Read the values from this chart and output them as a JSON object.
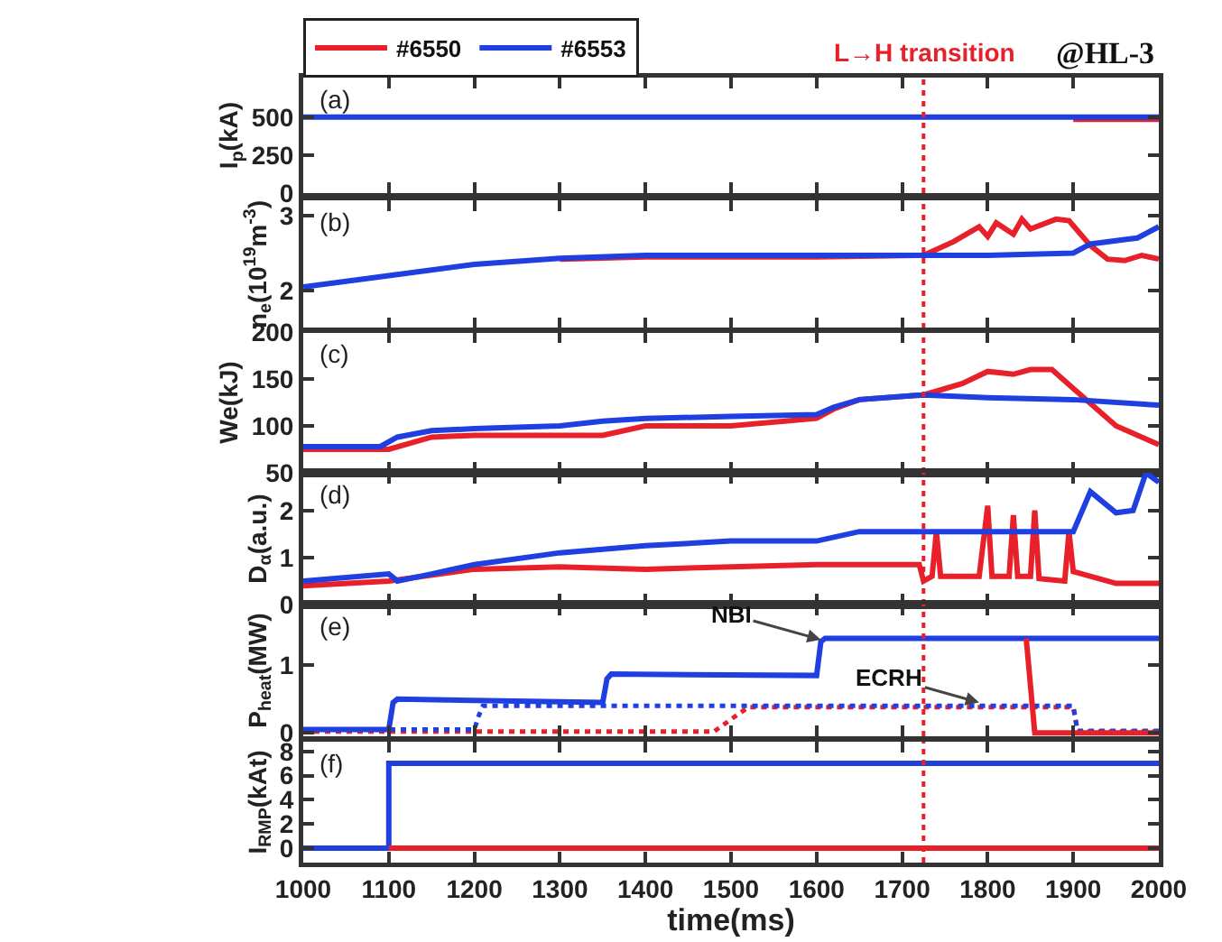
{
  "chart_data": [
    {
      "type": "line",
      "ylabel": "I$_{p}$(kA)",
      "xlim": [
        1000,
        2000
      ],
      "xticks": [
        1000,
        1100,
        1200,
        1300,
        1400,
        1500,
        1600,
        1700,
        1800,
        1900,
        2000
      ],
      "ylim": [
        0,
        760
      ],
      "yticks": [
        0,
        250,
        500
      ],
      "tick_labels": "y",
      "grid": false,
      "legend": "top left",
      "annotations": [
        "(a)",
        "@HL-3"
      ],
      "ref_lines": [
        {
          "axis": "x",
          "value": 1725,
          "label": "L→H transition",
          "color": "#e8202a",
          "line_style": "dotted"
        }
      ],
      "series": [
        {
          "name": "#6550",
          "color": "#e8202a",
          "x": [
            1900,
            1950,
            2000
          ],
          "values": [
            485,
            485,
            485
          ]
        },
        {
          "name": "#6553",
          "color": "#1f3fe0",
          "x": [
            1000,
            1200,
            1400,
            1600,
            1800,
            2000
          ],
          "values": [
            500,
            500,
            500,
            500,
            500,
            500
          ]
        }
      ]
    },
    {
      "type": "line",
      "ylabel": "n$_{e}$(10$^{19}$m$^{-3}$)",
      "xlim": [
        1000,
        2000
      ],
      "xticks": [
        1000,
        1100,
        1200,
        1300,
        1400,
        1500,
        1600,
        1700,
        1800,
        1900,
        2000
      ],
      "ylim": [
        1.5,
        3.2
      ],
      "yticks": [
        2,
        3
      ],
      "tick_labels": "y",
      "grid": false,
      "annotations": [
        "(b)"
      ],
      "ref_lines": [
        {
          "axis": "x",
          "value": 1725,
          "color": "#e8202a",
          "line_style": "dotted"
        }
      ],
      "series": [
        {
          "color": "#e8202a",
          "x": [
            1300,
            1400,
            1500,
            1600,
            1725,
            1760,
            1790,
            1800,
            1810,
            1830,
            1840,
            1850,
            1880,
            1895,
            1920,
            1940,
            1960,
            1980,
            2000
          ],
          "values": [
            2.42,
            2.45,
            2.45,
            2.45,
            2.47,
            2.65,
            2.85,
            2.72,
            2.9,
            2.75,
            2.95,
            2.82,
            2.95,
            2.93,
            2.6,
            2.42,
            2.4,
            2.47,
            2.42
          ]
        },
        {
          "color": "#1f3fe0",
          "x": [
            1000,
            1100,
            1200,
            1300,
            1400,
            1500,
            1600,
            1700,
            1800,
            1900,
            1920,
            1960,
            1975,
            2000
          ],
          "values": [
            2.05,
            2.2,
            2.35,
            2.43,
            2.47,
            2.47,
            2.47,
            2.47,
            2.47,
            2.5,
            2.62,
            2.68,
            2.7,
            2.85
          ]
        }
      ]
    },
    {
      "type": "line",
      "ylabel": "We(kJ)",
      "xlim": [
        1000,
        2000
      ],
      "xticks": [
        1000,
        1100,
        1200,
        1300,
        1400,
        1500,
        1600,
        1700,
        1800,
        1900,
        2000
      ],
      "ylim": [
        50,
        200
      ],
      "yticks": [
        50,
        100,
        150,
        200
      ],
      "tick_labels": "y",
      "grid": false,
      "annotations": [
        "(c)"
      ],
      "ref_lines": [
        {
          "axis": "x",
          "value": 1725,
          "color": "#e8202a",
          "line_style": "dotted"
        }
      ],
      "series": [
        {
          "color": "#e8202a",
          "x": [
            1000,
            1100,
            1150,
            1200,
            1350,
            1400,
            1500,
            1600,
            1620,
            1650,
            1725,
            1770,
            1800,
            1830,
            1850,
            1875,
            1900,
            1950,
            2000
          ],
          "values": [
            75,
            75,
            88,
            90,
            90,
            100,
            100,
            108,
            118,
            128,
            133,
            145,
            158,
            155,
            160,
            160,
            140,
            100,
            80
          ]
        },
        {
          "color": "#1f3fe0",
          "x": [
            1000,
            1090,
            1110,
            1150,
            1200,
            1300,
            1350,
            1400,
            1500,
            1600,
            1620,
            1650,
            1725,
            1800,
            1900,
            2000
          ],
          "values": [
            78,
            78,
            88,
            95,
            97,
            100,
            105,
            108,
            110,
            112,
            120,
            128,
            133,
            130,
            128,
            122
          ]
        }
      ]
    },
    {
      "type": "line",
      "ylabel": "D$_{α}$(a.u.)",
      "xlim": [
        1000,
        2000
      ],
      "xticks": [
        1000,
        1100,
        1200,
        1300,
        1400,
        1500,
        1600,
        1700,
        1800,
        1900,
        2000
      ],
      "ylim": [
        0,
        2.8
      ],
      "yticks": [
        0,
        1,
        2
      ],
      "tick_labels": "y",
      "grid": false,
      "annotations": [
        "(d)"
      ],
      "ref_lines": [
        {
          "axis": "x",
          "value": 1725,
          "color": "#e8202a",
          "line_style": "dotted"
        }
      ],
      "series": [
        {
          "color": "#e8202a",
          "x": [
            1000,
            1100,
            1200,
            1300,
            1400,
            1500,
            1600,
            1720,
            1725,
            1735,
            1740,
            1745,
            1790,
            1800,
            1805,
            1825,
            1830,
            1835,
            1850,
            1855,
            1860,
            1890,
            1895,
            1900,
            1950,
            2000
          ],
          "values": [
            0.4,
            0.5,
            0.75,
            0.8,
            0.75,
            0.8,
            0.85,
            0.85,
            0.5,
            0.6,
            1.55,
            0.6,
            0.6,
            2.1,
            0.6,
            0.6,
            1.9,
            0.6,
            0.6,
            2.0,
            0.55,
            0.5,
            1.55,
            0.7,
            0.45,
            0.45
          ]
        },
        {
          "color": "#1f3fe0",
          "x": [
            1000,
            1100,
            1110,
            1150,
            1200,
            1300,
            1400,
            1500,
            1600,
            1650,
            1725,
            1800,
            1900,
            1920,
            1950,
            1970,
            1985,
            2000
          ],
          "values": [
            0.5,
            0.65,
            0.5,
            0.65,
            0.85,
            1.1,
            1.25,
            1.35,
            1.35,
            1.55,
            1.55,
            1.55,
            1.55,
            2.4,
            1.95,
            2.0,
            2.8,
            2.6
          ]
        }
      ]
    },
    {
      "type": "line",
      "ylabel": "P$_{heat}$(MW)",
      "xlim": [
        1000,
        2000
      ],
      "xticks": [
        1000,
        1100,
        1200,
        1300,
        1400,
        1500,
        1600,
        1700,
        1800,
        1900,
        2000
      ],
      "ylim": [
        -0.05,
        1.9
      ],
      "yticks": [
        0,
        1
      ],
      "tick_labels": "y",
      "grid": false,
      "annotations": [
        "(e)",
        {
          "text": "NBI",
          "x": 1605,
          "y": 1.38
        },
        {
          "text": "ECRH",
          "x": 1790,
          "y": 0.45
        }
      ],
      "ref_lines": [
        {
          "axis": "x",
          "value": 1725,
          "color": "#e8202a",
          "line_style": "dotted"
        }
      ],
      "series": [
        {
          "color": "#e8202a",
          "line_style": "dotted",
          "x": [
            1000,
            1480,
            1520,
            1900,
            1905,
            2000
          ],
          "values": [
            0.02,
            0.02,
            0.38,
            0.38,
            0.02,
            0.02
          ]
        },
        {
          "color": "#1f3fe0",
          "line_style": "dotted",
          "x": [
            1000,
            1200,
            1205,
            1210,
            1900,
            1905,
            2000
          ],
          "values": [
            0.05,
            0.05,
            0.25,
            0.4,
            0.4,
            0.03,
            0.03
          ]
        },
        {
          "color": "#1f3fe0",
          "x": [
            1000,
            1100,
            1105,
            1110,
            1350,
            1355,
            1360,
            1600,
            1605,
            1610,
            2000
          ],
          "values": [
            0.05,
            0.05,
            0.45,
            0.5,
            0.45,
            0.8,
            0.87,
            0.85,
            1.35,
            1.4,
            1.4
          ]
        },
        {
          "color": "#e8202a",
          "x": [
            1845,
            1855,
            2000
          ],
          "values": [
            1.4,
            0,
            0
          ]
        }
      ]
    },
    {
      "type": "line",
      "xlabel": "time(ms)",
      "ylabel": "I$_{RMP}$(kAt)",
      "xlim": [
        1000,
        2000
      ],
      "xticks": [
        1000,
        1100,
        1200,
        1300,
        1400,
        1500,
        1600,
        1700,
        1800,
        1900,
        2000
      ],
      "ylim": [
        -1.2,
        8.8
      ],
      "yticks": [
        0,
        2,
        4,
        6,
        8
      ],
      "grid": false,
      "annotations": [
        "(f)"
      ],
      "ref_lines": [
        {
          "axis": "x",
          "value": 1725,
          "color": "#e8202a",
          "line_style": "dotted"
        }
      ],
      "series": [
        {
          "color": "#1f3fe0",
          "x": [
            1000,
            1100,
            1100,
            2000
          ],
          "values": [
            0,
            0,
            7,
            7
          ]
        },
        {
          "color": "#e8202a",
          "x": [
            1100,
            2000
          ],
          "values": [
            0,
            0
          ]
        }
      ]
    }
  ]
}
